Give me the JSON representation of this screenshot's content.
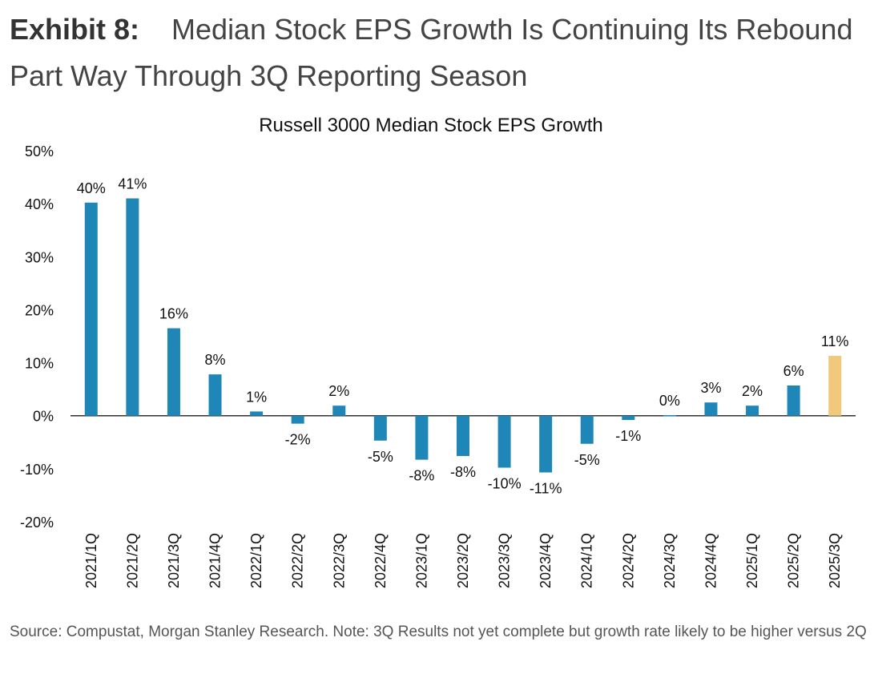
{
  "exhibit": {
    "label": "Exhibit 8:",
    "title": "Median Stock EPS Growth Is Continuing Its Rebound Part Way Through 3Q Reporting Season"
  },
  "source_note": "Source: Compustat, Morgan Stanley Research. Note: 3Q Results not yet complete but growth rate likely to be higher versus 2Q",
  "chart_data": {
    "type": "bar",
    "title": "Russell 3000 Median Stock EPS Growth",
    "xlabel": "",
    "ylabel": "",
    "categories": [
      "2021/1Q",
      "2021/2Q",
      "2021/3Q",
      "2021/4Q",
      "2022/1Q",
      "2022/2Q",
      "2022/3Q",
      "2022/4Q",
      "2023/1Q",
      "2023/2Q",
      "2023/3Q",
      "2023/4Q",
      "2024/1Q",
      "2024/2Q",
      "2024/3Q",
      "2024/4Q",
      "2025/1Q",
      "2025/2Q",
      "2025/3Q"
    ],
    "values": [
      40.2,
      41.0,
      16.5,
      7.8,
      0.8,
      -1.5,
      1.9,
      -4.7,
      -8.3,
      -7.6,
      -9.8,
      -10.7,
      -5.3,
      -0.8,
      0.1,
      2.5,
      1.9,
      5.7,
      11.3
    ],
    "data_labels": [
      "40%",
      "41%",
      "16%",
      "8%",
      "1%",
      "-2%",
      "2%",
      "-5%",
      "-8%",
      "-8%",
      "-10%",
      "-11%",
      "-5%",
      "-1%",
      "0%",
      "3%",
      "2%",
      "6%",
      "11%"
    ],
    "y_ticks": [
      -20,
      -10,
      0,
      10,
      20,
      30,
      40,
      50
    ],
    "y_tick_labels": [
      "-20%",
      "-10%",
      "0%",
      "10%",
      "20%",
      "30%",
      "40%",
      "50%"
    ],
    "ylim": [
      -20,
      50
    ],
    "grid": false,
    "legend": "none",
    "colors": {
      "bar": "#1F87B8",
      "highlight": "#F0C97D",
      "baseline": "#333333"
    },
    "highlight_index": 18
  }
}
